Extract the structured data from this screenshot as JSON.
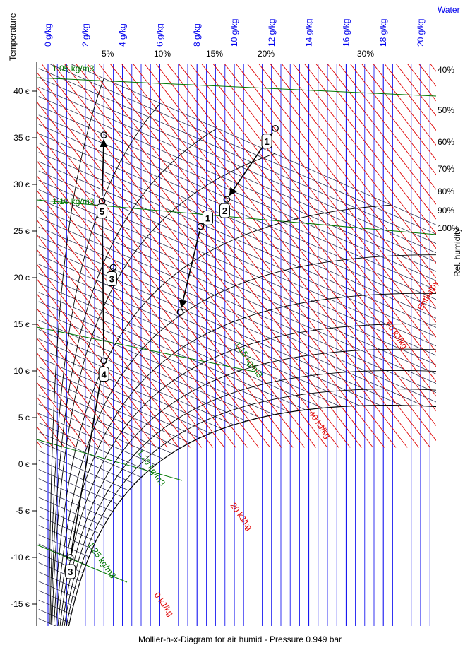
{
  "chart_data": {
    "type": "psychrometric",
    "title": "Mollier-h-x-Diagram for air humid - Pressure  0.949 bar",
    "ylabel": "Temperature",
    "xlabel_top": "Water",
    "rh_axis_label": "Rel. humidity",
    "enthalpy_axis_label": "Enthalpy",
    "ylim": [
      -17,
      42
    ],
    "temperature_ticks": [
      -15,
      -10,
      -5,
      0,
      5,
      10,
      15,
      20,
      25,
      30,
      35,
      40
    ],
    "temperature_tick_labels": [
      "-15 є",
      "-10 є",
      "-5 є",
      "0 є",
      "5 є",
      "10 є",
      "15 є",
      "20 є",
      "25 є",
      "30 є",
      "35 є",
      "40 є"
    ],
    "water_content_ticks": [
      0,
      2,
      4,
      6,
      8,
      10,
      12,
      14,
      16,
      18,
      20
    ],
    "water_content_tick_labels": [
      "0 g/kg",
      "2 g/kg",
      "4 g/kg",
      "6 g/kg",
      "8 g/kg",
      "10 g/kg",
      "12 g/kg",
      "14 g/kg",
      "16 g/kg",
      "18 g/kg",
      "20 g/kg"
    ],
    "relative_humidity_curves": [
      5,
      10,
      15,
      20,
      30,
      40,
      50,
      60,
      70,
      80,
      90,
      100
    ],
    "relative_humidity_labels": [
      "5%",
      "10%",
      "15%",
      "20%",
      "30%",
      "40%",
      "50%",
      "60%",
      "70%",
      "80%",
      "90%",
      "100%"
    ],
    "enthalpy_lines": [
      0,
      20,
      40,
      60
    ],
    "enthalpy_labels": [
      "0 kJ/kg",
      "20 kJ/kg",
      "40 kJ/kg",
      "60 kJ/kg"
    ],
    "density_lines": [
      1.05,
      1.1,
      1.15,
      1.2,
      1.25
    ],
    "density_labels": [
      "1.05 kg/m3",
      "1.10 kg/m3",
      "1.15 kg/m3",
      "1.20 kg/m3",
      "1.25 kg/m3"
    ],
    "state_points": [
      {
        "label": "1",
        "t": 36,
        "x": 12.2
      },
      {
        "label": "2",
        "t": 28.4,
        "x": 9.6
      },
      {
        "label": "1",
        "t": 25.5,
        "x": 8.2
      },
      {
        "label": "",
        "t": 16.3,
        "x": 7.1
      },
      {
        "label": "3",
        "t": -10,
        "x": 1.2
      },
      {
        "label": "4",
        "t": 11.1,
        "x": 3.0
      },
      {
        "label": "3",
        "t": 21.1,
        "x": 3.5
      },
      {
        "label": "5",
        "t": 28.2,
        "x": 2.9
      },
      {
        "label": "",
        "t": 35.3,
        "x": 3.0
      }
    ],
    "process_lines": [
      [
        0,
        1
      ],
      [
        2,
        3
      ],
      [
        4,
        5
      ],
      [
        5,
        7
      ],
      [
        7,
        8
      ]
    ],
    "grid": true,
    "colors": {
      "water": "#0000ee",
      "enthalpy": "#e00000",
      "density": "#007700",
      "isotherm": "#000000"
    }
  }
}
